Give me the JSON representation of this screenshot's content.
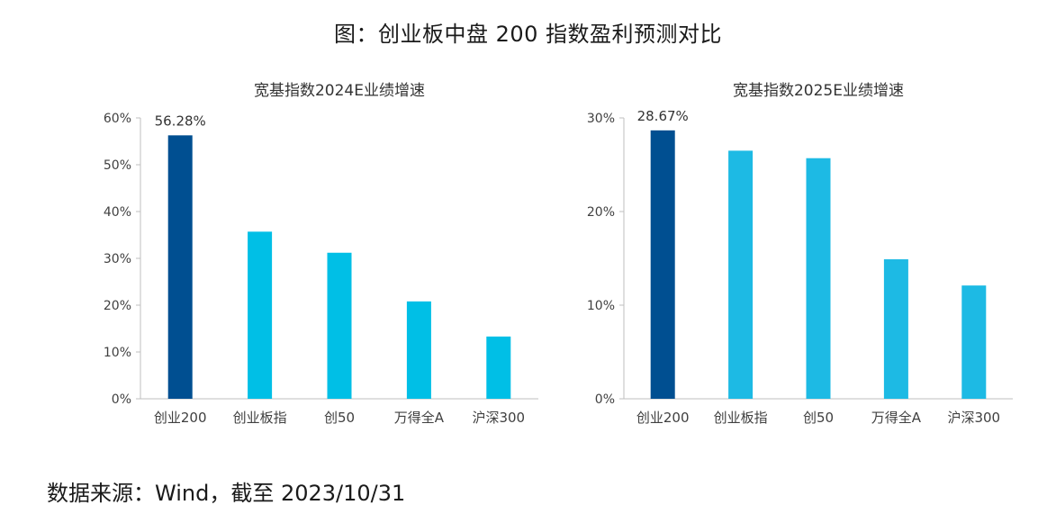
{
  "title": "图：创业板中盘 200 指数盈利预测对比",
  "source": "数据来源：Wind，截至 2023/10/31",
  "chart_data": [
    {
      "type": "bar",
      "title": "宽基指数2024E业绩增速",
      "categories": [
        "创业200",
        "创业板指",
        "创50",
        "万得全A",
        "沪深300"
      ],
      "values": [
        56.28,
        35.7,
        31.2,
        20.8,
        13.3
      ],
      "value_unit": "%",
      "highlight_label": "56.28%",
      "ylim": [
        0,
        60
      ],
      "yticks": [
        0,
        10,
        20,
        30,
        40,
        50,
        60
      ],
      "ytick_labels": [
        "0%",
        "10%",
        "20%",
        "30%",
        "40%",
        "50%",
        "60%"
      ],
      "grid": false,
      "colors": {
        "highlight": "#004F91",
        "default": "#00BFE6"
      }
    },
    {
      "type": "bar",
      "title": "宽基指数2025E业绩增速",
      "categories": [
        "创业200",
        "创业板指",
        "创50",
        "万得全A",
        "沪深300"
      ],
      "values": [
        28.67,
        26.5,
        25.7,
        14.9,
        12.1
      ],
      "value_unit": "%",
      "highlight_label": "28.67%",
      "ylim": [
        0,
        30
      ],
      "yticks": [
        0,
        10,
        20,
        30
      ],
      "ytick_labels": [
        "0%",
        "10%",
        "20%",
        "30%"
      ],
      "grid": false,
      "colors": {
        "highlight": "#004F91",
        "default": "#1DBAE4"
      }
    }
  ]
}
